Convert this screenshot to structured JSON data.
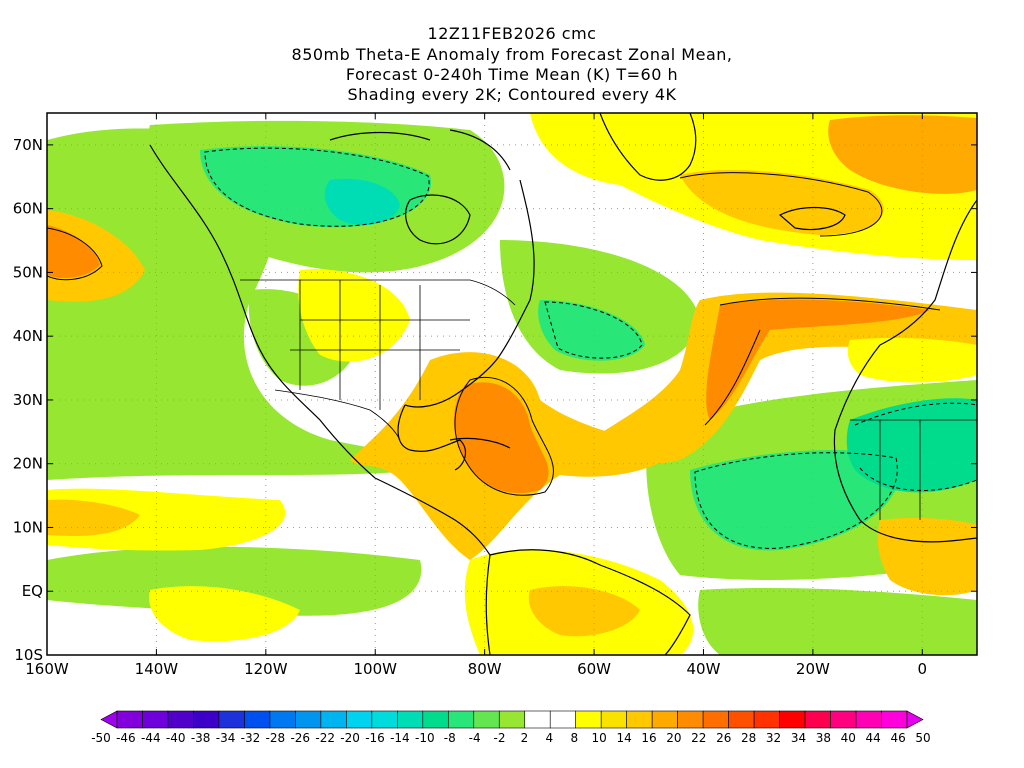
{
  "header": {
    "line1": "12Z11FEB2026 cmc",
    "line2": "850mb Theta-E Anomaly from Forecast Zonal Mean,",
    "line3": "Forecast 0-240h Time Mean (K) T=60 h",
    "line4": "Shading every 2K; Contoured every 4K"
  },
  "map": {
    "projection": "cylindrical equidistant",
    "lon_range": [
      -160,
      10
    ],
    "lat_range": [
      -10,
      75
    ],
    "lon_ticks": [
      {
        "value": -160,
        "label": "160W"
      },
      {
        "value": -140,
        "label": "140W"
      },
      {
        "value": -120,
        "label": "120W"
      },
      {
        "value": -100,
        "label": "100W"
      },
      {
        "value": -80,
        "label": "80W"
      },
      {
        "value": -60,
        "label": "60W"
      },
      {
        "value": -40,
        "label": "40W"
      },
      {
        "value": -20,
        "label": "20W"
      },
      {
        "value": 0,
        "label": "0"
      }
    ],
    "lat_ticks": [
      {
        "value": 70,
        "label": "70N"
      },
      {
        "value": 60,
        "label": "60N"
      },
      {
        "value": 50,
        "label": "50N"
      },
      {
        "value": 40,
        "label": "40N"
      },
      {
        "value": 30,
        "label": "30N"
      },
      {
        "value": 20,
        "label": "20N"
      },
      {
        "value": 10,
        "label": "10N"
      },
      {
        "value": 0,
        "label": "EQ"
      },
      {
        "value": -10,
        "label": "10S"
      }
    ],
    "grid": true,
    "features": [
      {
        "name": "warm-plume-caribbean-atlantic",
        "level": 18,
        "lon": [
          -85,
          -35
        ],
        "lat": [
          12,
          38
        ]
      },
      {
        "name": "warm-band-north-atlantic",
        "level": 22,
        "lon": [
          -40,
          -5
        ],
        "lat": [
          38,
          46
        ]
      },
      {
        "name": "warm-greenland-iceland",
        "level": 10,
        "lon": [
          -40,
          10
        ],
        "lat": [
          55,
          75
        ]
      },
      {
        "name": "warm-west-pacific",
        "level": 12,
        "lon": [
          -160,
          -145
        ],
        "lat": [
          47,
          60
        ]
      },
      {
        "name": "warm-itcz-pacific",
        "level": 8,
        "lon": [
          -160,
          -110
        ],
        "lat": [
          5,
          15
        ]
      },
      {
        "name": "warm-south-america",
        "level": 8,
        "lon": [
          -80,
          -40
        ],
        "lat": [
          -10,
          5
        ]
      },
      {
        "name": "cold-canada",
        "level": -14,
        "lon": [
          -150,
          -85
        ],
        "lat": [
          55,
          72
        ]
      },
      {
        "name": "cold-north-pacific",
        "level": -8,
        "lon": [
          -160,
          -100
        ],
        "lat": [
          20,
          50
        ]
      },
      {
        "name": "cold-western-atlantic",
        "level": -10,
        "lon": [
          -70,
          -45
        ],
        "lat": [
          35,
          48
        ]
      },
      {
        "name": "cold-tropical-atlantic",
        "level": -12,
        "lon": [
          -40,
          -10
        ],
        "lat": [
          5,
          25
        ]
      },
      {
        "name": "cold-west-africa",
        "level": -10,
        "lon": [
          -15,
          10
        ],
        "lat": [
          10,
          32
        ]
      }
    ]
  },
  "colorbar": {
    "boundaries": [
      -50,
      -46,
      -44,
      -40,
      -38,
      -34,
      -32,
      -28,
      -26,
      -22,
      -20,
      -16,
      -14,
      -10,
      -8,
      -4,
      -2,
      2,
      4,
      8,
      10,
      14,
      16,
      20,
      22,
      26,
      28,
      32,
      34,
      38,
      40,
      44,
      46,
      50
    ],
    "labels": [
      "-50",
      "-46",
      "-44",
      "-40",
      "-38",
      "-34",
      "-32",
      "-28",
      "-26",
      "-22",
      "-20",
      "-16",
      "-14",
      "-10",
      "-8",
      "-4",
      "-2",
      "2",
      "4",
      "8",
      "10",
      "14",
      "16",
      "20",
      "22",
      "26",
      "28",
      "32",
      "34",
      "38",
      "40",
      "44",
      "46",
      "50"
    ],
    "colors": [
      "#a000f0",
      "#8200dc",
      "#6e00dc",
      "#5000c8",
      "#3c00c8",
      "#1e32dc",
      "#0050f0",
      "#0078f0",
      "#0096f0",
      "#00b4f0",
      "#00d2f0",
      "#00dcdc",
      "#00dcb4",
      "#00dc8c",
      "#28e678",
      "#64e650",
      "#96e632",
      "#ffffff",
      "#ffffff",
      "#ffff00",
      "#fae100",
      "#ffc800",
      "#ffaa00",
      "#ff8c00",
      "#ff6e00",
      "#ff5000",
      "#ff3200",
      "#ff0000",
      "#ff0050",
      "#ff0080",
      "#ff00b4",
      "#ff00dc",
      "#e600f0"
    ]
  },
  "colors": {
    "background": "#ffffff",
    "land_outline": "#000000",
    "grid": "#999999"
  }
}
